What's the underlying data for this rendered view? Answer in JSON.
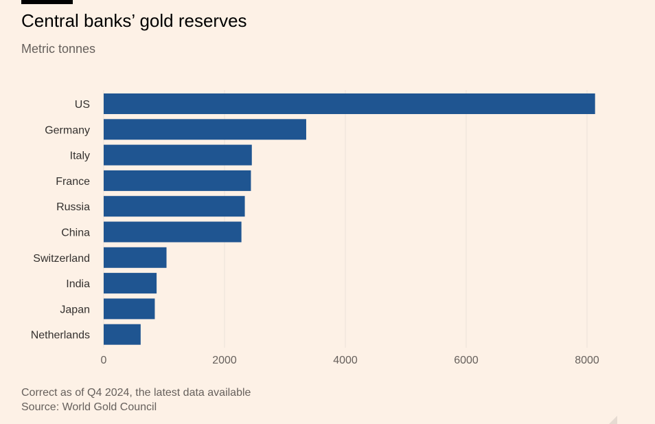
{
  "header": {
    "title": "Central banks’ gold reserves",
    "subtitle": "Metric tonnes"
  },
  "footer": {
    "note": "Correct as of Q4 2024, the latest data available",
    "source": "Source: World Gold Council"
  },
  "chart_data": {
    "type": "bar",
    "orientation": "horizontal",
    "title": "Central banks’ gold reserves",
    "subtitle": "Metric tonnes",
    "categories": [
      "US",
      "Germany",
      "Italy",
      "France",
      "Russia",
      "China",
      "Switzerland",
      "India",
      "Japan",
      "Netherlands"
    ],
    "values": [
      8133,
      3352,
      2452,
      2437,
      2336,
      2280,
      1040,
      876,
      846,
      612
    ],
    "xlim": [
      0,
      9000
    ],
    "xticks": [
      0,
      2000,
      4000,
      6000,
      8000
    ],
    "grid": true,
    "bar_color": "#1f5591",
    "grid_color": "#ebe1d8"
  }
}
